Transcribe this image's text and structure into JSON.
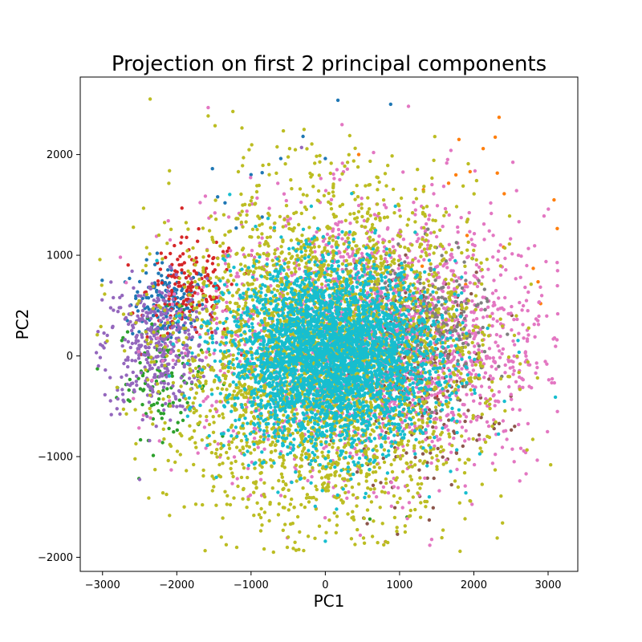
{
  "chart_data": {
    "type": "scatter",
    "title": "Projection on first 2 principal components",
    "xlabel": "PC1",
    "ylabel": "PC2",
    "xlim": [
      -3300,
      3400
    ],
    "ylim": [
      -2140,
      2770
    ],
    "xticks": [
      -3000,
      -2000,
      -1000,
      0,
      1000,
      2000,
      3000
    ],
    "xtick_labels": [
      "−3000",
      "−2000",
      "−1000",
      "0",
      "1000",
      "2000",
      "3000"
    ],
    "yticks": [
      -2000,
      -1000,
      0,
      1000,
      2000
    ],
    "ytick_labels": [
      "−2000",
      "−1000",
      "0",
      "1000",
      "2000"
    ],
    "grid": false,
    "legend": "none",
    "series": [
      {
        "color": "#1f77b4",
        "cx": -2100,
        "cy": 520,
        "sx": 260,
        "sy": 200,
        "n": 180,
        "outliers": [
          [
            170,
            2540
          ],
          [
            880,
            2500
          ],
          [
            -300,
            2180
          ],
          [
            -600,
            1960
          ],
          [
            -1520,
            1860
          ],
          [
            -850,
            1820
          ],
          [
            -1000,
            1800
          ],
          [
            0,
            1960
          ],
          [
            -1450,
            1580
          ],
          [
            -1350,
            1520
          ],
          [
            -850,
            1380
          ],
          [
            -1200,
            1270
          ]
        ]
      },
      {
        "color": "#ff7f0e",
        "cx": 2000,
        "cy": 1500,
        "sx": 500,
        "sy": 600,
        "n": 14,
        "outliers": [
          [
            3080,
            1550
          ],
          [
            2340,
            2370
          ],
          [
            1800,
            2150
          ],
          [
            2900,
            520
          ],
          [
            2800,
            870
          ],
          [
            450,
            2000
          ],
          [
            1950,
            1830
          ],
          [
            2400,
            1080
          ]
        ]
      },
      {
        "color": "#2ca02c",
        "cx": -2200,
        "cy": -200,
        "sx": 300,
        "sy": 300,
        "n": 120,
        "outliers": [
          [
            600,
            -1620
          ],
          [
            1100,
            -1600
          ],
          [
            -2200,
            -620
          ]
        ]
      },
      {
        "color": "#d62728",
        "cx": -1800,
        "cy": 650,
        "sx": 300,
        "sy": 250,
        "n": 160,
        "outliers": [
          [
            1500,
            -400
          ],
          [
            1400,
            700
          ],
          [
            -1300,
            1070
          ],
          [
            -1000,
            1000
          ]
        ]
      },
      {
        "color": "#9467bd",
        "cx": -2300,
        "cy": 100,
        "sx": 350,
        "sy": 330,
        "n": 380,
        "outliers": [
          [
            -3000,
            100
          ],
          [
            -2400,
            -600
          ],
          [
            -320,
            2070
          ]
        ]
      },
      {
        "color": "#8c564b",
        "cx": 1200,
        "cy": -200,
        "sx": 500,
        "sy": 500,
        "n": 300,
        "outliers": [
          [
            2500,
            -400
          ],
          [
            2550,
            -700
          ],
          [
            1700,
            -1280
          ],
          [
            1400,
            -1630
          ]
        ]
      },
      {
        "color": "#e377c2",
        "cx": 700,
        "cy": 150,
        "sx": 1150,
        "sy": 650,
        "n": 2100,
        "outliers": [
          [
            2600,
            1000
          ],
          [
            2300,
            -130
          ],
          [
            -1300,
            1380
          ],
          [
            650,
            2020
          ]
        ]
      },
      {
        "color": "#7f7f7f",
        "cx": 1300,
        "cy": 300,
        "sx": 450,
        "sy": 350,
        "n": 280,
        "outliers": []
      },
      {
        "color": "#bcbd22",
        "cx": 0,
        "cy": 0,
        "sx": 1000,
        "sy": 800,
        "n": 3400,
        "outliers": [
          [
            -500,
            -1800
          ],
          [
            -1400,
            -1800
          ],
          [
            600,
            1700
          ],
          [
            2200,
            200
          ],
          [
            -1900,
            -1500
          ]
        ]
      },
      {
        "color": "#17becf",
        "cx": 100,
        "cy": 0,
        "sx": 700,
        "sy": 450,
        "n": 3400,
        "outliers": [
          [
            1400,
            -1400
          ],
          [
            0,
            -1840
          ],
          [
            -2100,
            -200
          ]
        ]
      }
    ]
  }
}
